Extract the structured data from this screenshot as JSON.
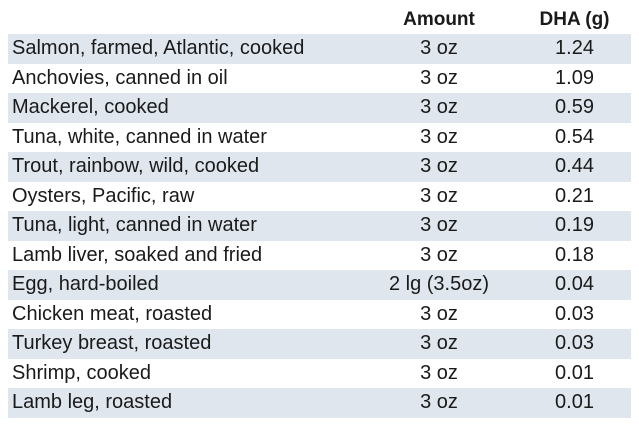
{
  "table": {
    "headers": {
      "food": "",
      "amount": "Amount",
      "dha": "DHA (g)"
    },
    "rows": [
      {
        "food": "Salmon, farmed, Atlantic, cooked",
        "amount": "3 oz",
        "dha": "1.24"
      },
      {
        "food": "Anchovies, canned in oil",
        "amount": "3 oz",
        "dha": "1.09"
      },
      {
        "food": "Mackerel, cooked",
        "amount": "3 oz",
        "dha": "0.59"
      },
      {
        "food": "Tuna, white, canned in water",
        "amount": "3 oz",
        "dha": "0.54"
      },
      {
        "food": "Trout, rainbow, wild, cooked",
        "amount": "3 oz",
        "dha": "0.44"
      },
      {
        "food": "Oysters, Pacific, raw",
        "amount": "3 oz",
        "dha": "0.21"
      },
      {
        "food": "Tuna, light, canned in water",
        "amount": "3 oz",
        "dha": "0.19"
      },
      {
        "food": "Lamb liver, soaked and fried",
        "amount": "3 oz",
        "dha": "0.18"
      },
      {
        "food": "Egg, hard-boiled",
        "amount": "2 lg (3.5oz)",
        "dha": "0.04"
      },
      {
        "food": "Chicken meat, roasted",
        "amount": "3 oz",
        "dha": "0.03"
      },
      {
        "food": "Turkey breast, roasted",
        "amount": "3 oz",
        "dha": "0.03"
      },
      {
        "food": "Shrimp, cooked",
        "amount": "3 oz",
        "dha": "0.01"
      },
      {
        "food": "Lamb leg, roasted",
        "amount": "3 oz",
        "dha": "0.01"
      }
    ]
  },
  "colors": {
    "stripe": "#dfe6ee",
    "background": "#ffffff",
    "text": "#1a1a1a"
  }
}
